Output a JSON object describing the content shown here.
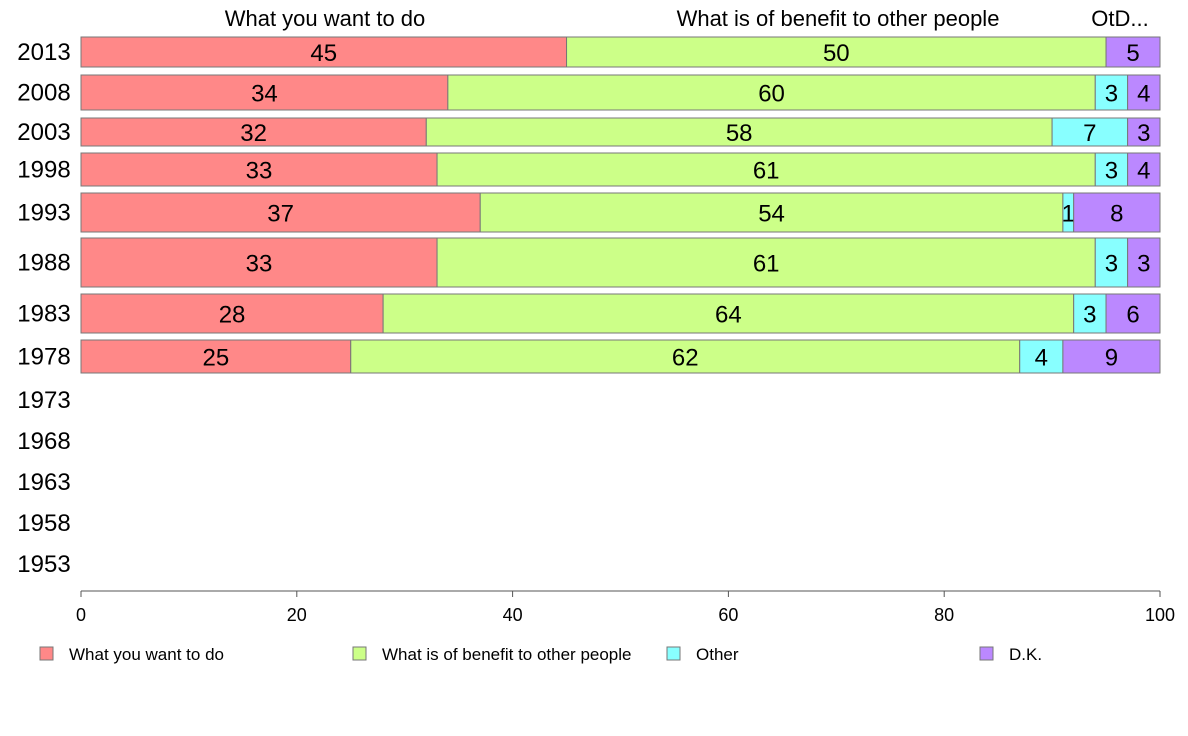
{
  "chart_data": {
    "type": "bar",
    "orientation": "horizontal",
    "stacked": true,
    "categories": [
      "2013",
      "2008",
      "2003",
      "1998",
      "1993",
      "1988",
      "1983",
      "1978",
      "1973",
      "1968",
      "1963",
      "1958",
      "1953"
    ],
    "series": [
      {
        "name": "What you want to do",
        "color": "#ff8888",
        "values": [
          45,
          34,
          32,
          33,
          37,
          33,
          28,
          25,
          null,
          null,
          null,
          null,
          null
        ]
      },
      {
        "name": "What is of benefit to other people",
        "color": "#ccff88",
        "values": [
          50,
          60,
          58,
          61,
          54,
          61,
          64,
          62,
          null,
          null,
          null,
          null,
          null
        ]
      },
      {
        "name": "Other",
        "color": "#88ffff",
        "values": [
          0,
          3,
          7,
          3,
          1,
          3,
          3,
          4,
          null,
          null,
          null,
          null,
          null
        ]
      },
      {
        "name": "D.K.",
        "color": "#bb88ff",
        "values": [
          5,
          4,
          3,
          4,
          8,
          3,
          6,
          9,
          null,
          null,
          null,
          null,
          null
        ]
      }
    ],
    "column_headers": [
      "What you want to do",
      "What is of benefit to other people",
      "OtD..."
    ],
    "xlim": [
      0,
      100
    ],
    "xticks": [
      0,
      20,
      40,
      60,
      80,
      100
    ],
    "legend_position": "bottom",
    "grid": false
  }
}
